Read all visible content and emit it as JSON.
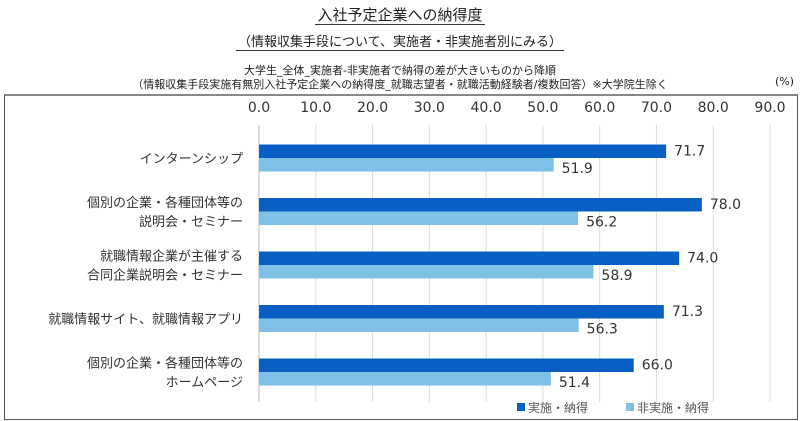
{
  "chart_data": {
    "type": "bar",
    "orientation": "horizontal",
    "title": "入社予定企業への納得度",
    "subtitle": "（情報収集手段について、実施者・非実施者別にみる）",
    "notes": [
      "大学生_全体_実施者-非実施者で納得の差が大きいものから降順",
      "（情報収集手段実施有無別入社予定企業への納得度_就職志望者・就職活動経験者/複数回答）※大学院生除く"
    ],
    "unit": "(%)",
    "categories": [
      [
        "インターンシップ"
      ],
      [
        "個別の企業・各種団体等の",
        "説明会・セミナー"
      ],
      [
        "就職情報企業が主催する",
        "合同企業説明会・セミナー"
      ],
      [
        "就職情報サイト、就職情報アプリ"
      ],
      [
        "個別の企業・各種団体等の",
        "ホームページ"
      ]
    ],
    "series": [
      {
        "name": "実施・納得",
        "color": "#0a5fc4",
        "values": [
          71.7,
          78.0,
          74.0,
          71.3,
          66.0
        ]
      },
      {
        "name": "非実施・納得",
        "color": "#7ec0e6",
        "values": [
          51.9,
          56.2,
          58.9,
          56.3,
          51.4
        ]
      }
    ],
    "xlim": [
      0,
      90
    ],
    "ticks": [
      "0.0",
      "10.0",
      "20.0",
      "30.0",
      "40.0",
      "50.0",
      "60.0",
      "70.0",
      "80.0",
      "90.0"
    ],
    "grid": true,
    "legend": "bottom-right"
  }
}
